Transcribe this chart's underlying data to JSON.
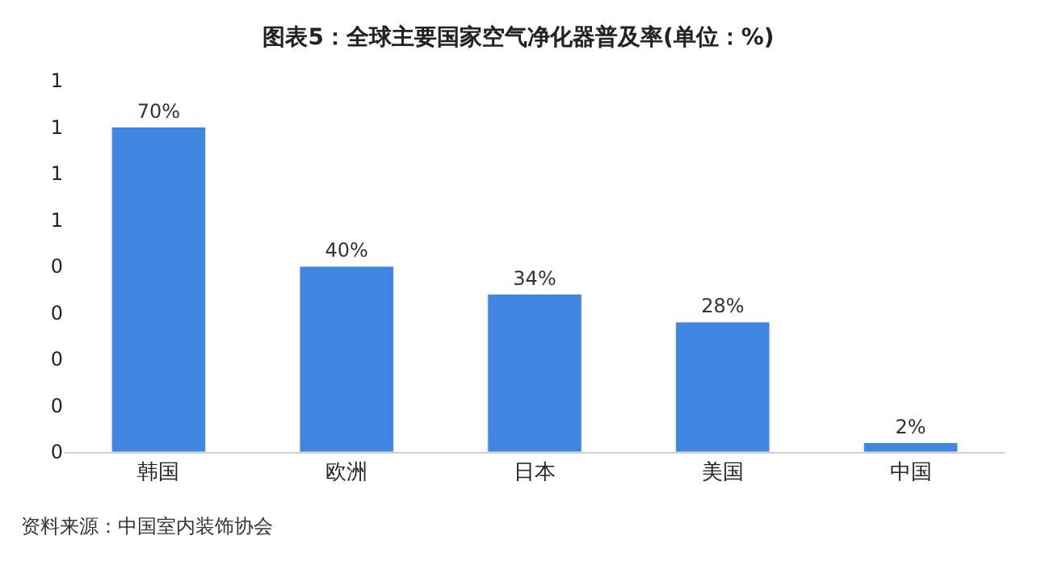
{
  "chart_data": {
    "type": "bar",
    "title": "图表5：全球主要国家空气净化器普及率(单位：%)",
    "categories": [
      "韩国",
      "欧洲",
      "日本",
      "美国",
      "中国"
    ],
    "values": [
      0.7,
      0.4,
      0.34,
      0.28,
      0.02
    ],
    "value_labels": [
      "70%",
      "40%",
      "34%",
      "28%",
      "2%"
    ],
    "color": "#3f86e0",
    "ylim": [
      0,
      0.8
    ],
    "yticks": [
      {
        "value": 0,
        "label": "0"
      },
      {
        "value": 0.1,
        "label": "0"
      },
      {
        "value": 0.2,
        "label": "0"
      },
      {
        "value": 0.3,
        "label": "0"
      },
      {
        "value": 0.4,
        "label": "0"
      },
      {
        "value": 0.5,
        "label": "1"
      },
      {
        "value": 0.6,
        "label": "1"
      },
      {
        "value": 0.7,
        "label": "1"
      },
      {
        "value": 0.8,
        "label": "1"
      }
    ],
    "annotations": [
      "资料来源：中国室内装饰协会"
    ]
  }
}
